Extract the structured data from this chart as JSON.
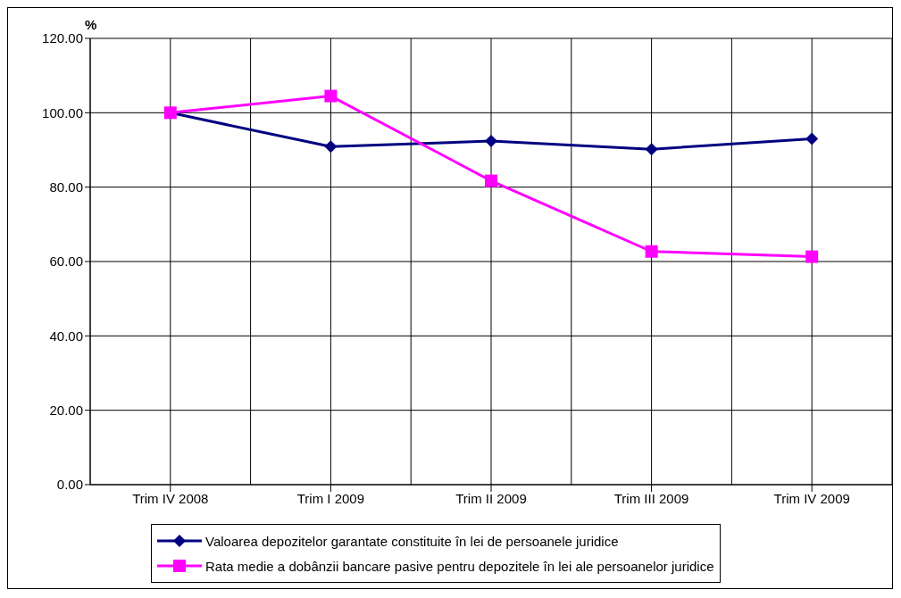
{
  "chart_data": {
    "type": "line",
    "ylabel": "%",
    "categories": [
      "Trim IV 2008",
      "Trim I 2009",
      "Trim II 2009",
      "Trim III 2009",
      "Trim IV 2009"
    ],
    "series": [
      {
        "name": "Valoarea depozitelor garantate constituite în lei de persoanele juridice",
        "color": "#000080",
        "marker": "diamond",
        "values": [
          100,
          90.9,
          92.4,
          90.2,
          93.0
        ]
      },
      {
        "name": "Rata medie a dobânzii bancare pasive pentru depozitele în lei ale persoanelor juridice",
        "color": "#ff00ff",
        "marker": "square",
        "values": [
          100,
          104.5,
          81.7,
          62.7,
          61.3
        ]
      }
    ],
    "ylim": [
      0,
      120
    ],
    "yticks": [
      {
        "value": 0,
        "label": "0.00"
      },
      {
        "value": 20,
        "label": "20.00"
      },
      {
        "value": 40,
        "label": "40.00"
      },
      {
        "value": 60,
        "label": "60.00"
      },
      {
        "value": 80,
        "label": "80.00"
      },
      {
        "value": 100,
        "label": "100.00"
      },
      {
        "value": 120,
        "label": "120.00"
      }
    ],
    "grid": true,
    "legend": "bottom",
    "line_style": "solid"
  }
}
